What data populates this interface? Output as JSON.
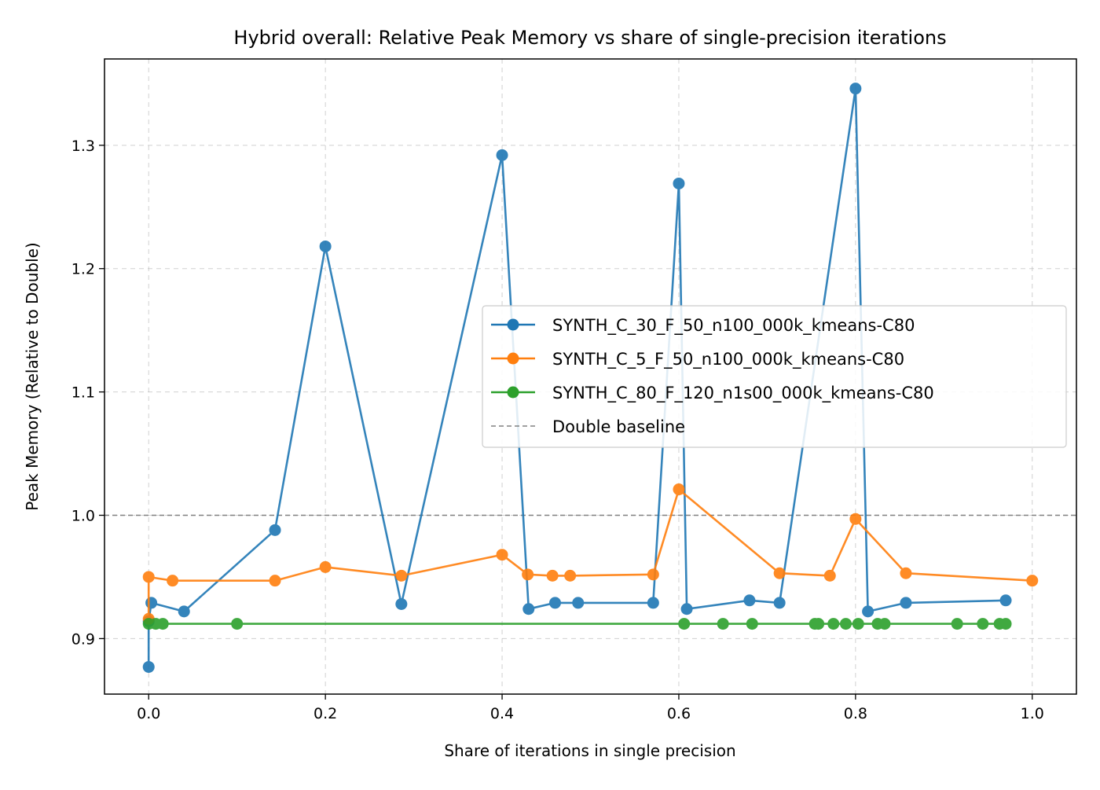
{
  "chart_data": {
    "type": "line",
    "title": "Hybrid overall: Relative Peak Memory vs share of single-precision iterations",
    "xlabel": "Share of iterations in single precision",
    "ylabel": "Peak Memory (Relative to Double)",
    "xlim": [
      -0.05,
      1.05
    ],
    "ylim": [
      0.855,
      1.37
    ],
    "xticks": [
      0.0,
      0.2,
      0.4,
      0.6,
      0.8,
      1.0
    ],
    "xtick_labels": [
      "0.0",
      "0.2",
      "0.4",
      "0.6",
      "0.8",
      "1.0"
    ],
    "yticks": [
      0.9,
      1.0,
      1.1,
      1.2,
      1.3
    ],
    "ytick_labels": [
      "0.9",
      "1.0",
      "1.1",
      "1.2",
      "1.3"
    ],
    "grid": true,
    "legend_position": "center-right",
    "series": [
      {
        "name": "SYNTH_C_30_F_50_n100_000k_kmeans-C80",
        "color": "#1f77b4",
        "x": [
          0.0,
          0.0,
          0.003,
          0.04,
          0.143,
          0.2,
          0.286,
          0.4,
          0.43,
          0.46,
          0.486,
          0.571,
          0.6,
          0.609,
          0.68,
          0.714,
          0.8,
          0.814,
          0.857,
          0.97
        ],
        "y": [
          0.877,
          0.914,
          0.929,
          0.922,
          0.988,
          1.218,
          0.928,
          1.292,
          0.924,
          0.929,
          0.929,
          0.929,
          1.269,
          0.924,
          0.931,
          0.929,
          1.346,
          0.922,
          0.929,
          0.931
        ]
      },
      {
        "name": "SYNTH_C_5_F_50_n100_000k_kmeans-C80",
        "color": "#ff7f0e",
        "x": [
          0.0,
          0.0,
          0.027,
          0.143,
          0.2,
          0.286,
          0.4,
          0.429,
          0.457,
          0.477,
          0.571,
          0.6,
          0.714,
          0.771,
          0.8,
          0.857,
          1.0
        ],
        "y": [
          0.916,
          0.95,
          0.947,
          0.947,
          0.958,
          0.951,
          0.968,
          0.952,
          0.951,
          0.951,
          0.952,
          1.021,
          0.953,
          0.951,
          0.997,
          0.953,
          0.947
        ]
      },
      {
        "name": "SYNTH_C_80_F_120_n1s00_000k_kmeans-C80",
        "color": "#2ca02c",
        "x": [
          0.0,
          0.008,
          0.016,
          0.1,
          0.606,
          0.65,
          0.683,
          0.754,
          0.758,
          0.775,
          0.789,
          0.803,
          0.825,
          0.833,
          0.915,
          0.944,
          0.963,
          0.97
        ],
        "y": [
          0.912,
          0.912,
          0.912,
          0.912,
          0.912,
          0.912,
          0.912,
          0.912,
          0.912,
          0.912,
          0.912,
          0.912,
          0.912,
          0.912,
          0.912,
          0.912,
          0.912,
          0.912
        ]
      }
    ],
    "baseline": {
      "name": "Double baseline",
      "y": 1.0,
      "color": "#808080"
    }
  }
}
